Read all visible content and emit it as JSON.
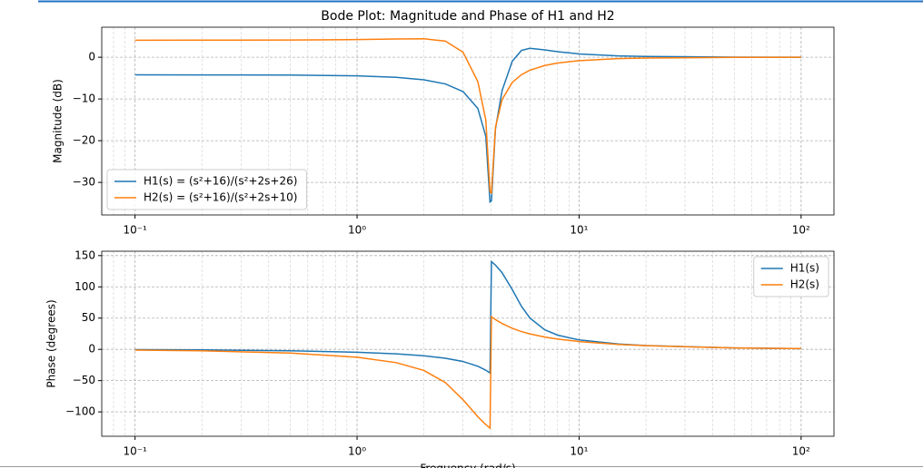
{
  "chart_data": [
    {
      "type": "line",
      "title": "Bode Plot: Magnitude and Phase of H1 and H2",
      "ylabel": "Magnitude (dB)",
      "x": [
        0.1,
        0.2,
        0.5,
        1,
        1.5,
        2,
        2.5,
        3,
        3.5,
        3.8,
        3.97,
        4.03,
        4.2,
        4.5,
        5,
        5.5,
        6,
        7,
        8,
        10,
        15,
        20,
        50,
        100
      ],
      "series": [
        {
          "name": "H1(s) = (s²+16)/(s²+2s+26)",
          "color": "#1f77b4",
          "values": [
            -4.22,
            -4.23,
            -4.28,
            -4.47,
            -4.82,
            -5.41,
            -6.4,
            -8.22,
            -12.29,
            -18.96,
            -34.7,
            -34.4,
            -17.18,
            -8.0,
            -0.96,
            1.64,
            2.15,
            1.77,
            1.32,
            0.8,
            0.33,
            0.18,
            0.03,
            0.01
          ]
        },
        {
          "name": "H2(s) = (s²+16)/(s²+2s+10)",
          "color": "#ff7f0e",
          "values": [
            4.08,
            4.09,
            4.12,
            4.23,
            4.37,
            4.42,
            3.86,
            1.22,
            -5.85,
            -15.03,
            -32.26,
            -32.53,
            -16.81,
            -10.13,
            -6.03,
            -4.18,
            -3.12,
            -1.98,
            -1.39,
            -0.81,
            -0.33,
            -0.18,
            -0.03,
            -0.01
          ]
        }
      ],
      "xscale": "log",
      "xlim": [
        0.0708,
        140.6
      ],
      "ylim": [
        -37.8,
        7.2
      ],
      "xticks": [
        {
          "value": 0.1,
          "label": "10⁻¹"
        },
        {
          "value": 1,
          "label": "10⁰"
        },
        {
          "value": 10,
          "label": "10¹"
        },
        {
          "value": 100,
          "label": "10²"
        }
      ],
      "yticks": [
        {
          "value": -30,
          "label": "−30"
        },
        {
          "value": -20,
          "label": "−20"
        },
        {
          "value": -10,
          "label": "−10"
        },
        0
      ],
      "grid": true,
      "legend": "lower left"
    },
    {
      "type": "line",
      "xlabel": "Frequency (rad/s)",
      "ylabel": "Phase (degrees)",
      "x": [
        0.1,
        0.2,
        0.5,
        1,
        1.5,
        2,
        2.5,
        3,
        3.5,
        3.8,
        3.97,
        4.03,
        4.2,
        4.5,
        5,
        5.5,
        6,
        7,
        8,
        10,
        15,
        20,
        50,
        100
      ],
      "series": [
        {
          "name": "H1(s)",
          "color": "#1f77b4",
          "values": [
            -0.44,
            -0.88,
            -2.22,
            -4.57,
            -7.2,
            -10.3,
            -14.2,
            -19.4,
            -27.0,
            -33.3,
            -37.8,
            140.4,
            134.9,
            122.6,
            95.7,
            68.9,
            50.2,
            31.3,
            22.8,
            15.1,
            8.6,
            6.1,
            2.3,
            1.15
          ]
        },
        {
          "name": "H2(s)",
          "color": "#ff7f0e",
          "values": [
            -1.15,
            -2.3,
            -5.86,
            -12.5,
            -21.2,
            -33.7,
            -53.1,
            -80.5,
            -107.8,
            -120.3,
            -126.0,
            52.3,
            47.7,
            41.3,
            33.7,
            28.5,
            24.8,
            19.7,
            16.5,
            12.5,
            7.9,
            5.9,
            2.3,
            1.15
          ]
        }
      ],
      "xscale": "log",
      "xlim": [
        0.0708,
        140.6
      ],
      "ylim": [
        -139,
        157
      ],
      "xticks": [
        {
          "value": 0.1,
          "label": "10⁻¹"
        },
        {
          "value": 1,
          "label": "10⁰"
        },
        {
          "value": 10,
          "label": "10¹"
        },
        {
          "value": 100,
          "label": "10²"
        }
      ],
      "yticks": [
        {
          "value": -100,
          "label": "−100"
        },
        {
          "value": -50,
          "label": "−50"
        },
        0,
        50,
        100,
        150
      ],
      "grid": true,
      "legend": "upper right"
    }
  ]
}
